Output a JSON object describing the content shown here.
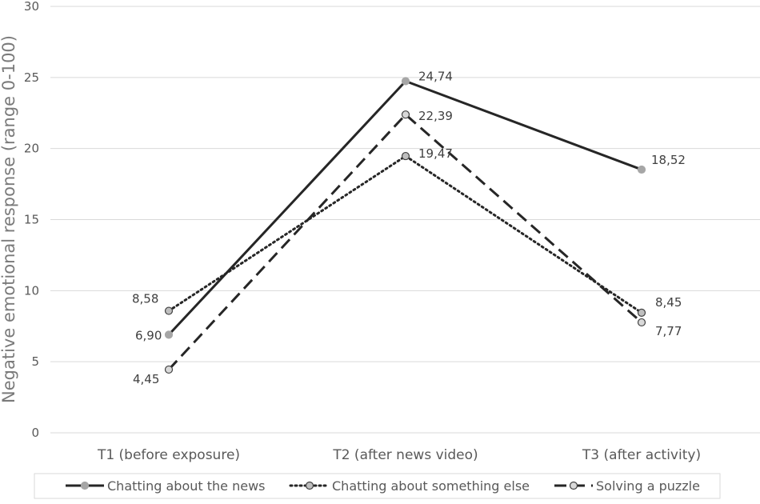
{
  "chart_data": {
    "type": "line",
    "title": "",
    "xlabel": "",
    "ylabel": "Negative emotional response (range 0-100)",
    "categories": [
      "T1 (before exposure)",
      "T2 (after news video)",
      "T3 (after activity)"
    ],
    "ylim": [
      0,
      30
    ],
    "yticks": [
      0,
      5,
      10,
      15,
      20,
      25,
      30
    ],
    "grid": true,
    "legend_position": "bottom",
    "series": [
      {
        "name": "Chatting about the news",
        "values": [
          6.9,
          24.74,
          18.52
        ],
        "labels": [
          "6,90",
          "24,74",
          "18,52"
        ],
        "line_style": "solid",
        "line_color": "#262626",
        "marker_fill": "#a6a6a6"
      },
      {
        "name": "Chatting about something else",
        "values": [
          8.58,
          19.47,
          8.45
        ],
        "labels": [
          "8,58",
          "19,47",
          "8,45"
        ],
        "line_style": "dotted",
        "line_color": "#262626",
        "marker_fill": "#bfbfbf"
      },
      {
        "name": "Solving a puzzle",
        "values": [
          4.45,
          22.39,
          7.77
        ],
        "labels": [
          "4,45",
          "22,39",
          "7,77"
        ],
        "line_style": "dashed",
        "line_color": "#262626",
        "marker_fill": "#d9d9d9"
      }
    ]
  }
}
